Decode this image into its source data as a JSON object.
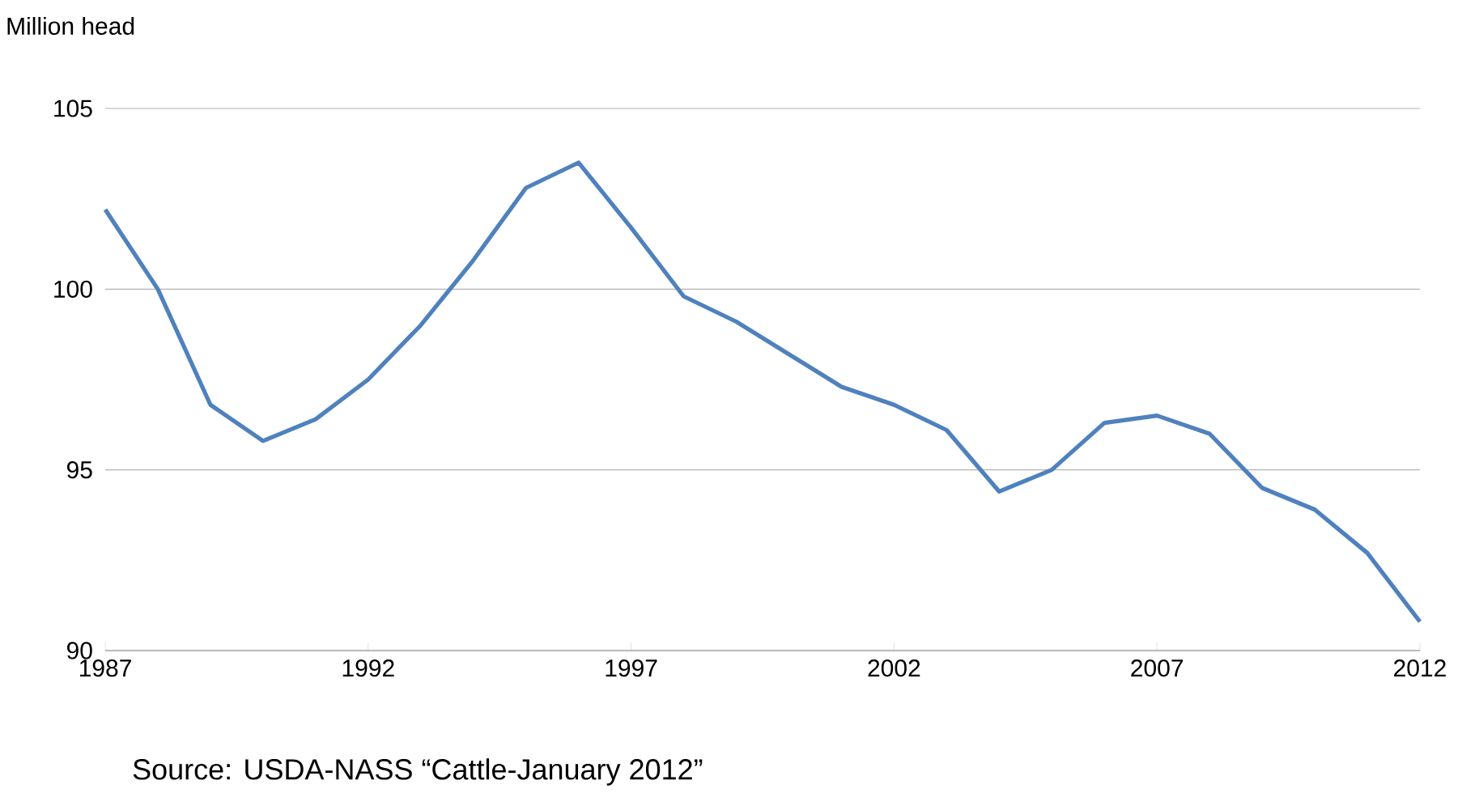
{
  "chart_data": {
    "type": "line",
    "ylabel": "Million head",
    "x": [
      1987,
      1988,
      1989,
      1990,
      1991,
      1992,
      1993,
      1994,
      1995,
      1996,
      1997,
      1998,
      1999,
      2000,
      2001,
      2002,
      2003,
      2004,
      2005,
      2006,
      2007,
      2008,
      2009,
      2010,
      2011,
      2012
    ],
    "series": [
      {
        "color": "#4f81bd",
        "values": [
          102.2,
          100.0,
          96.8,
          95.8,
          96.4,
          97.5,
          99.0,
          100.8,
          102.8,
          103.5,
          101.7,
          99.8,
          99.1,
          98.2,
          97.3,
          96.8,
          96.1,
          94.4,
          95.0,
          96.3,
          96.5,
          96.0,
          94.5,
          93.9,
          92.7,
          90.8
        ]
      }
    ],
    "xlim": [
      1987,
      2012
    ],
    "xticks": [
      1987,
      1992,
      1997,
      2002,
      2007,
      2012
    ],
    "ylim": [
      90,
      105
    ],
    "yticks": [
      90,
      95,
      100,
      105
    ],
    "grid": "y",
    "marker": "none",
    "line_style": "solid",
    "annotations": [
      "Source: USDA-NASS “Cattle-January 2012”"
    ]
  }
}
